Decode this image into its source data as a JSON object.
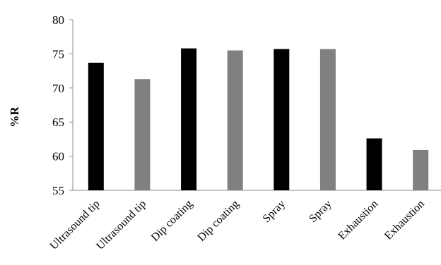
{
  "chart_data": {
    "type": "bar",
    "title": "",
    "xlabel": "",
    "ylabel": "%R",
    "ylim": [
      55,
      80
    ],
    "yticks": [
      55,
      60,
      65,
      70,
      75,
      80
    ],
    "grid": false,
    "legend": "none",
    "categories": [
      "Ultrasound tip",
      "Ultrasound tip",
      "Dip coating",
      "Dip coating",
      "Spray",
      "Spray",
      "Exhaustion",
      "Exhaustion"
    ],
    "values": [
      73.7,
      71.3,
      75.8,
      75.5,
      75.7,
      75.7,
      62.6,
      60.9
    ],
    "bar_colors": [
      "#000000",
      "#808080",
      "#000000",
      "#808080",
      "#000000",
      "#808080",
      "#000000",
      "#808080"
    ]
  }
}
